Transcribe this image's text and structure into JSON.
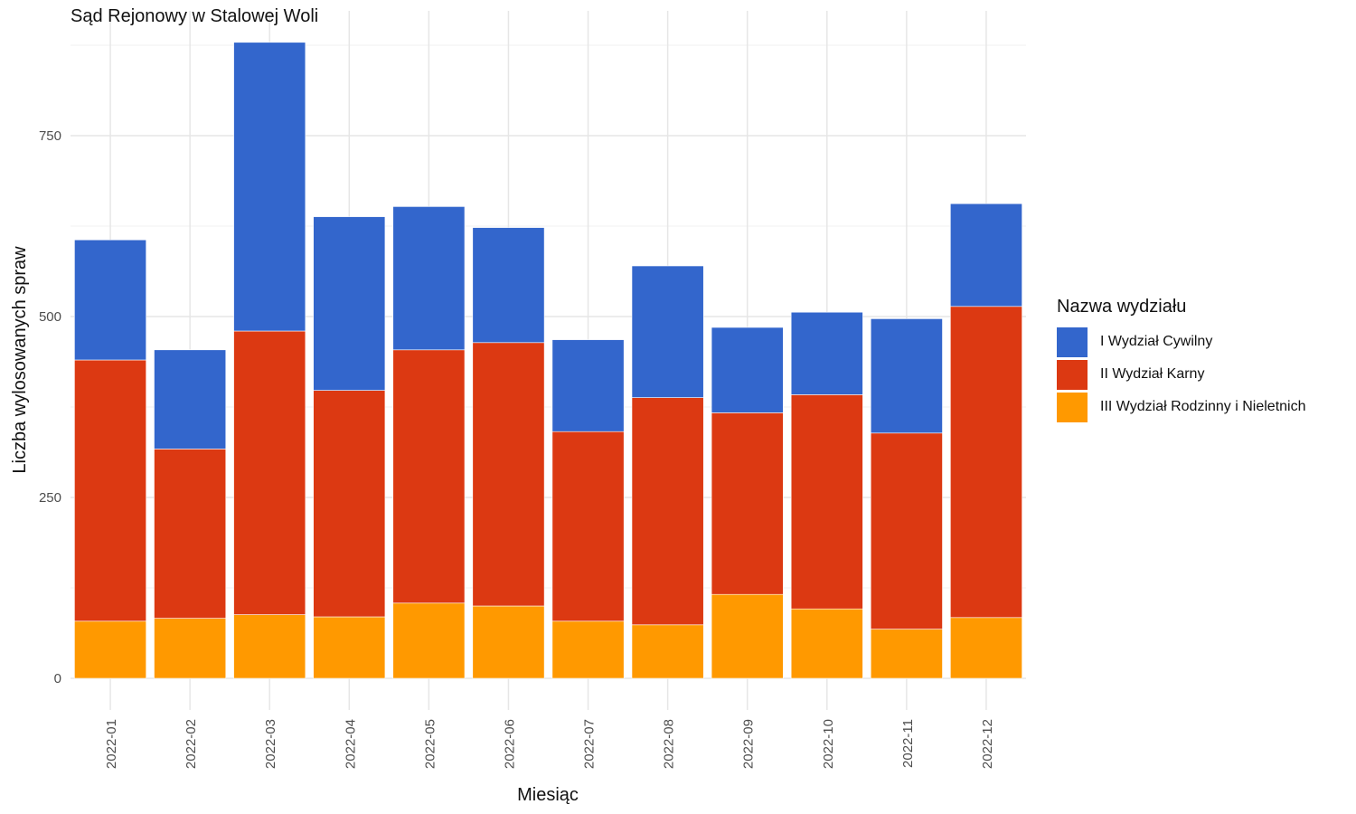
{
  "chart_data": {
    "type": "bar",
    "stacked": true,
    "title": "Sąd Rejonowy w Stalowej Woli",
    "xlabel": "Miesiąc",
    "ylabel": "Liczba wylosowanych spraw",
    "ylim": [
      0,
      900
    ],
    "yticks": [
      0,
      250,
      500,
      750
    ],
    "grid": true,
    "legend_position": "right",
    "legend_title": "Nazwa wydziału",
    "categories": [
      "2022-01",
      "2022-02",
      "2022-03",
      "2022-04",
      "2022-05",
      "2022-06",
      "2022-07",
      "2022-08",
      "2022-09",
      "2022-10",
      "2022-11",
      "2022-12"
    ],
    "series": [
      {
        "name": "I Wydział Cywilny",
        "color": "#3366CC",
        "values": [
          166,
          137,
          399,
          240,
          198,
          159,
          127,
          182,
          118,
          114,
          158,
          142
        ]
      },
      {
        "name": "II Wydział Karny",
        "color": "#DC3912",
        "values": [
          361,
          234,
          392,
          313,
          350,
          364,
          262,
          314,
          251,
          296,
          271,
          430
        ]
      },
      {
        "name": "III Wydział Rodzinny i Nieletnich",
        "color": "#FF9900",
        "values": [
          79,
          83,
          88,
          85,
          104,
          100,
          79,
          74,
          116,
          96,
          68,
          84
        ]
      }
    ]
  }
}
